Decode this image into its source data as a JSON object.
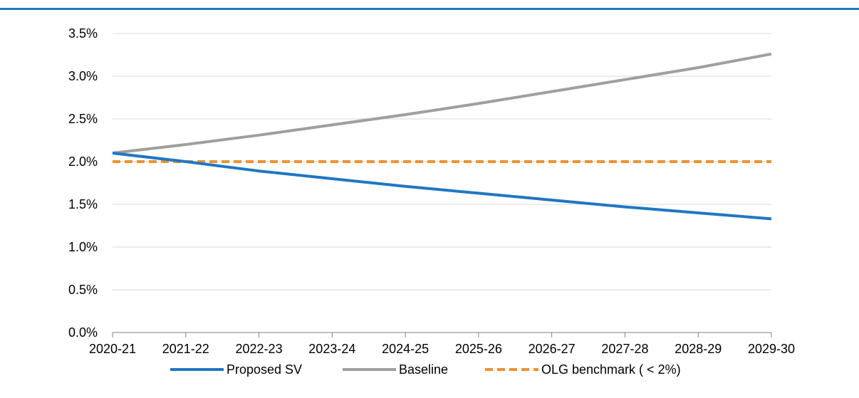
{
  "chart_data": {
    "type": "line",
    "categories": [
      "2020-21",
      "2021-22",
      "2022-23",
      "2023-24",
      "2024-25",
      "2025-26",
      "2026-27",
      "2027-28",
      "2028-29",
      "2029-30"
    ],
    "y_tick_labels": [
      "0.0%",
      "0.5%",
      "1.0%",
      "1.5%",
      "2.0%",
      "2.5%",
      "3.0%",
      "3.5%"
    ],
    "ylim": [
      0,
      3.5
    ],
    "grid": true,
    "legend_position": "bottom",
    "series": [
      {
        "name": "Proposed SV",
        "color": "#1f77c4",
        "style": "solid",
        "values": [
          2.1,
          2.0,
          1.89,
          1.8,
          1.71,
          1.63,
          1.55,
          1.47,
          1.4,
          1.33
        ]
      },
      {
        "name": "Baseline",
        "color": "#a09f9b",
        "style": "solid",
        "values": [
          2.1,
          2.2,
          2.31,
          2.43,
          2.55,
          2.68,
          2.82,
          2.96,
          3.1,
          3.26
        ]
      },
      {
        "name": "OLG benchmark ( < 2%)",
        "color": "#f0912c",
        "style": "dashed",
        "values": [
          2.0,
          2.0,
          2.0,
          2.0,
          2.0,
          2.0,
          2.0,
          2.0,
          2.0,
          2.0
        ]
      }
    ]
  },
  "colors": {
    "top_rule": "#1f77c4",
    "gridline": "#d9d9d9",
    "axis": "#808080"
  }
}
